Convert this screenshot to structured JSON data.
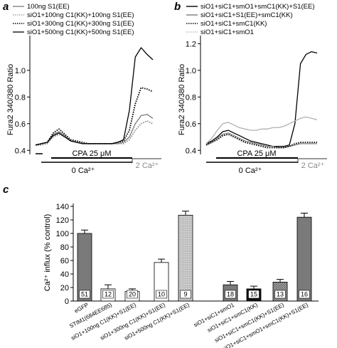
{
  "panel_labels": {
    "a": "a",
    "b": "b",
    "c": "c"
  },
  "panel_a": {
    "ylabel": "Fura2 340/380 Ratio",
    "yticks": [
      "0.4",
      "0.6",
      "0.8",
      "1.0"
    ],
    "legend": [
      "100ng S1(EE)",
      "siO1+100ng C1(KK)+100ng S1(EE)",
      "siO1+300ng C1(KK)+300ng S1(EE)",
      "siO1+500ng C1(KK)+500ng S1(EE)"
    ],
    "cpa_label": "CPA 25 μM",
    "ca0_label": "0 Ca²⁺",
    "ca2_label": "2 Ca²⁺"
  },
  "panel_b": {
    "ylabel": "Fura2 340/380 Ratio",
    "yticks": [
      "0.4",
      "0.6",
      "0.8",
      "1.0",
      "1.2"
    ],
    "legend": [
      "siO1+siC1+smO1+smC1(KK)+S1(EE)",
      "siO1+siC1+S1(EE)+smC1(KK)",
      "siO1+siC1+smC1(KK)",
      "siO1+siC1+smO1"
    ],
    "cpa_label": "CPA 25 μM",
    "ca0_label": "0 Ca²⁺",
    "ca2_label": "2 Ca²⁺"
  },
  "panel_c": {
    "ylabel": "Ca²⁺ influx (% control)",
    "yticks": [
      "0",
      "20",
      "40",
      "60",
      "80",
      "100",
      "120",
      "140"
    ]
  },
  "chart_data": [
    {
      "type": "line",
      "panel": "a",
      "ylabel": "Fura2 340/380 Ratio",
      "ylim": [
        0.38,
        1.25
      ],
      "series": [
        {
          "name": "100ng S1(EE)",
          "color": "#7a7a7a",
          "dash": "solid",
          "x": [
            0,
            5,
            10,
            15,
            20,
            25,
            30,
            35,
            40,
            45,
            50,
            55,
            60,
            65,
            70,
            75,
            80,
            85,
            90,
            95,
            100
          ],
          "y": [
            0.44,
            0.45,
            0.46,
            0.52,
            0.54,
            0.51,
            0.47,
            0.46,
            0.45,
            0.45,
            0.45,
            0.45,
            0.45,
            0.45,
            0.45,
            0.46,
            0.5,
            0.6,
            0.66,
            0.67,
            0.64
          ]
        },
        {
          "name": "siO1+100ng C1(KK)+100ng S1(EE)",
          "color": "#8f8f8f",
          "dash": "dotted",
          "x": [
            0,
            5,
            10,
            15,
            20,
            25,
            30,
            35,
            40,
            45,
            50,
            55,
            60,
            65,
            70,
            75,
            80,
            85,
            90,
            95,
            100
          ],
          "y": [
            0.44,
            0.44,
            0.45,
            0.5,
            0.52,
            0.5,
            0.47,
            0.46,
            0.45,
            0.45,
            0.45,
            0.45,
            0.45,
            0.45,
            0.45,
            0.45,
            0.48,
            0.55,
            0.6,
            0.62,
            0.6
          ]
        },
        {
          "name": "siO1+300ng C1(KK)+300ng S1(EE)",
          "color": "#000000",
          "dash": "dotted",
          "x": [
            0,
            5,
            10,
            15,
            20,
            25,
            30,
            35,
            40,
            45,
            50,
            55,
            60,
            65,
            70,
            75,
            80,
            85,
            90,
            95,
            100
          ],
          "y": [
            0.44,
            0.45,
            0.46,
            0.53,
            0.56,
            0.52,
            0.48,
            0.47,
            0.46,
            0.45,
            0.45,
            0.45,
            0.45,
            0.45,
            0.46,
            0.47,
            0.55,
            0.75,
            0.87,
            0.86,
            0.84
          ]
        },
        {
          "name": "siO1+500ng C1(KK)+500ng S1(EE)",
          "color": "#000000",
          "dash": "solid",
          "x": [
            0,
            5,
            10,
            15,
            20,
            25,
            30,
            35,
            40,
            45,
            50,
            55,
            60,
            65,
            70,
            75,
            80,
            85,
            90,
            95,
            100
          ],
          "y": [
            0.44,
            0.45,
            0.46,
            0.51,
            0.53,
            0.5,
            0.47,
            0.46,
            0.45,
            0.45,
            0.45,
            0.45,
            0.45,
            0.45,
            0.46,
            0.48,
            0.7,
            1.1,
            1.17,
            1.12,
            1.08
          ]
        }
      ]
    },
    {
      "type": "line",
      "panel": "b",
      "ylabel": "Fura2 340/380 Ratio",
      "ylim": [
        0.38,
        1.25
      ],
      "series": [
        {
          "name": "siO1+siC1+smO1+smC1(KK)+S1(EE)",
          "color": "#000000",
          "dash": "solid",
          "x": [
            0,
            5,
            10,
            15,
            20,
            25,
            30,
            35,
            40,
            45,
            50,
            55,
            60,
            65,
            70,
            75,
            80,
            85,
            90,
            95,
            100
          ],
          "y": [
            0.45,
            0.47,
            0.5,
            0.54,
            0.55,
            0.53,
            0.51,
            0.49,
            0.47,
            0.46,
            0.45,
            0.44,
            0.43,
            0.43,
            0.43,
            0.44,
            0.6,
            1.05,
            1.12,
            1.14,
            1.13
          ]
        },
        {
          "name": "siO1+siC1+S1(EE)+smC1(KK)",
          "color": "#7a7a7a",
          "dash": "solid",
          "x": [
            0,
            5,
            10,
            15,
            20,
            25,
            30,
            35,
            40,
            45,
            50,
            55,
            60,
            65,
            70,
            75,
            80,
            85,
            90,
            95,
            100
          ],
          "y": [
            0.44,
            0.46,
            0.49,
            0.52,
            0.53,
            0.51,
            0.49,
            0.47,
            0.46,
            0.45,
            0.44,
            0.43,
            0.43,
            0.42,
            0.42,
            0.43,
            0.44,
            0.45,
            0.45,
            0.45,
            0.45
          ]
        },
        {
          "name": "siO1+siC1+smC1(KK)",
          "color": "#000000",
          "dash": "dotted",
          "x": [
            0,
            5,
            10,
            15,
            20,
            25,
            30,
            35,
            40,
            45,
            50,
            55,
            60,
            65,
            70,
            75,
            80,
            85,
            90,
            95,
            100
          ],
          "y": [
            0.44,
            0.46,
            0.48,
            0.51,
            0.52,
            0.5,
            0.48,
            0.46,
            0.45,
            0.44,
            0.43,
            0.42,
            0.42,
            0.42,
            0.42,
            0.43,
            0.45,
            0.46,
            0.46,
            0.46,
            0.46
          ]
        },
        {
          "name": "siO1+siC1+smO1",
          "color": "#b0b0b0",
          "dash": "solid",
          "x": [
            0,
            5,
            10,
            15,
            20,
            25,
            30,
            35,
            40,
            45,
            50,
            55,
            60,
            65,
            70,
            75,
            80,
            85,
            90,
            95,
            100
          ],
          "y": [
            0.45,
            0.49,
            0.55,
            0.6,
            0.61,
            0.59,
            0.57,
            0.56,
            0.55,
            0.55,
            0.56,
            0.56,
            0.57,
            0.57,
            0.58,
            0.6,
            0.62,
            0.64,
            0.65,
            0.64,
            0.63
          ]
        }
      ]
    },
    {
      "type": "bar",
      "panel": "c",
      "ylabel": "Ca²⁺ influx (% control)",
      "ylim": [
        0,
        140
      ],
      "categories": [
        "eGFP",
        "STIM1(684EE685)",
        "siO1+100ng C1(KK)+S1(EE)",
        "siO1+300ng C1(KK)+S1(EE)",
        "siO1+500ng C1(KK)+S1(EE)",
        "siO1+siC1+smO1",
        "siO1+siC1+smC1(KK)",
        "siO1+siC1+smC1(KK)+S1(EE)",
        "siO1+siC1+smO1+smC1(KK)+S1(EE)"
      ],
      "values": [
        100,
        18,
        14,
        57,
        127,
        24,
        18,
        28,
        124
      ],
      "errors": [
        5,
        6,
        4,
        5,
        6,
        5,
        4,
        4,
        6
      ],
      "n": [
        "51",
        "12",
        "20",
        "10",
        "9",
        "18",
        "15",
        "13",
        "16"
      ],
      "colors": [
        "#7a7a7a",
        "#ffffff",
        "#ffffff",
        "#ffffff",
        "#b5b5b5",
        "#7a7a7a",
        "#111111",
        "#9a9a9a",
        "#7a7a7a"
      ]
    }
  ]
}
